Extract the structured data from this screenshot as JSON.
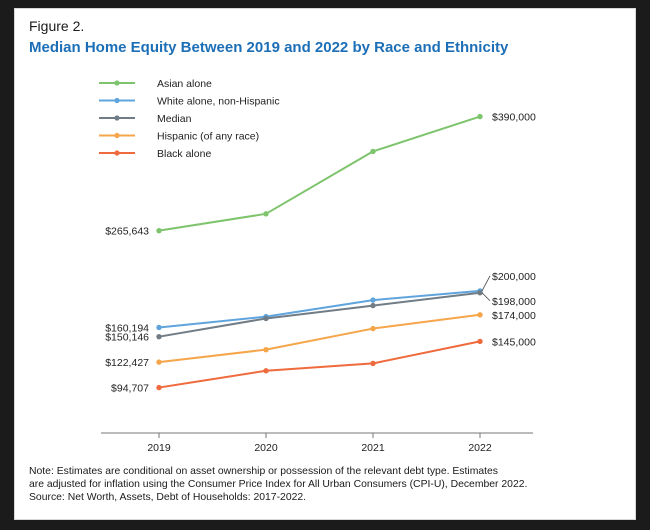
{
  "figure": {
    "label": "Figure 2.",
    "title": "Median Home Equity Between 2019 and 2022 by Race and Ethnicity",
    "note_lines": [
      "Note: Estimates are conditional on asset ownership or possession of the relevant debt type. Estimates",
      "are adjusted for inflation using the Consumer Price Index for All Urban Consumers (CPI-U), December 2022.",
      "Source: Net Worth, Assets, Debt of Households: 2017-2022."
    ]
  },
  "chart_data": {
    "type": "line",
    "title": "Median Home Equity Between 2019 and 2022 by Race and Ethnicity",
    "xlabel": "",
    "ylabel": "",
    "categories": [
      "2019",
      "2020",
      "2021",
      "2022"
    ],
    "ylim": [
      55000,
      420000
    ],
    "grid": false,
    "legend_position": "top-left",
    "series": [
      {
        "name": "Asian alone",
        "color": "#7dc46c",
        "values": [
          265643,
          284000,
          352000,
          390000
        ],
        "start_label": "$265,643",
        "end_label": "$390,000"
      },
      {
        "name": "White alone, non-Hispanic",
        "color": "#5fa4dc",
        "values": [
          160194,
          172000,
          190000,
          200000
        ],
        "start_label": "$160,194",
        "end_label": "$200,000"
      },
      {
        "name": "Median",
        "color": "#717d86",
        "values": [
          150146,
          170000,
          184000,
          198000
        ],
        "start_label": "$150,146",
        "end_label": "$198,000"
      },
      {
        "name": "Hispanic (of any race)",
        "color": "#f5a54a",
        "values": [
          122427,
          136000,
          159000,
          174000
        ],
        "start_label": "$122,427",
        "end_label": "$174,000"
      },
      {
        "name": "Black alone",
        "color": "#ef6a3c",
        "values": [
          94707,
          113000,
          121000,
          145000
        ],
        "start_label": "$94,707",
        "end_label": "$145,000"
      }
    ]
  }
}
